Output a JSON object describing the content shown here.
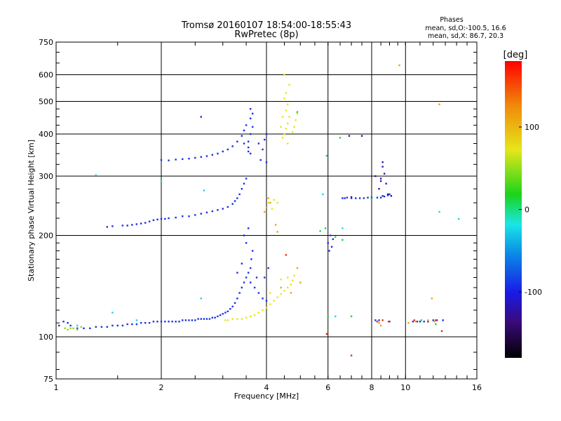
{
  "chart_data": {
    "type": "scatter",
    "title": "Tromsø 20160107 18:54:00-18:55:43",
    "subtitle": "RwPretec (8p)",
    "stats": {
      "heading": "Phases",
      "line1": "mean, sd,O:-100.5, 16.6",
      "line2": "mean, sd,X: 86.7, 20.3"
    },
    "xlabel": "Frequency [MHz]",
    "ylabel": "Stationary phase Virtual Height [km]",
    "x_scale": "log",
    "y_scale": "log",
    "xlim": [
      1,
      16
    ],
    "ylim": [
      75,
      750
    ],
    "x_ticks": [
      1,
      2,
      4,
      6,
      8,
      10,
      16
    ],
    "x_tick_labels": [
      "1",
      "2",
      "4",
      "6",
      "8",
      "10",
      "16"
    ],
    "y_ticks": [
      75,
      100,
      200,
      300,
      400,
      500,
      600,
      750
    ],
    "y_tick_labels": [
      "75",
      "100",
      "200",
      "300",
      "400",
      "500",
      "600",
      "750"
    ],
    "grid": true,
    "colorbar": {
      "label": "[deg]",
      "range": [
        -180,
        180
      ],
      "ticks": [
        100,
        0,
        -100
      ],
      "tick_labels": [
        "100",
        "0",
        "-100"
      ]
    },
    "series": [
      {
        "color": "#1a2ee6",
        "points": [
          [
            1.02,
            108
          ],
          [
            1.05,
            111
          ],
          [
            1.08,
            110
          ],
          [
            1.1,
            108
          ],
          [
            1.15,
            106
          ],
          [
            1.2,
            106
          ],
          [
            1.25,
            106
          ],
          [
            1.3,
            107
          ],
          [
            1.35,
            107
          ],
          [
            1.4,
            107
          ],
          [
            1.45,
            108
          ],
          [
            1.5,
            108
          ],
          [
            1.55,
            108
          ],
          [
            1.6,
            109
          ],
          [
            1.65,
            109
          ],
          [
            1.7,
            109
          ],
          [
            1.75,
            110
          ],
          [
            1.8,
            110
          ],
          [
            1.85,
            110
          ],
          [
            1.9,
            111
          ],
          [
            1.95,
            111
          ],
          [
            2.0,
            111
          ],
          [
            2.05,
            111
          ],
          [
            2.1,
            111
          ],
          [
            2.15,
            111
          ],
          [
            2.2,
            111
          ],
          [
            2.25,
            111
          ],
          [
            2.3,
            112
          ],
          [
            2.35,
            112
          ],
          [
            2.4,
            112
          ],
          [
            2.45,
            112
          ],
          [
            2.5,
            112
          ],
          [
            2.55,
            113
          ],
          [
            2.6,
            113
          ],
          [
            2.65,
            113
          ],
          [
            2.7,
            113
          ],
          [
            2.75,
            113
          ],
          [
            2.8,
            114
          ],
          [
            2.85,
            114
          ],
          [
            2.9,
            115
          ],
          [
            2.95,
            116
          ],
          [
            3.0,
            117
          ],
          [
            3.05,
            118
          ],
          [
            3.1,
            119
          ],
          [
            3.15,
            121
          ],
          [
            3.2,
            123
          ],
          [
            3.25,
            126
          ],
          [
            3.3,
            130
          ],
          [
            3.35,
            135
          ],
          [
            3.4,
            140
          ],
          [
            3.45,
            145
          ],
          [
            3.5,
            150
          ],
          [
            3.55,
            155
          ],
          [
            3.6,
            160
          ],
          [
            3.62,
            170
          ],
          [
            3.65,
            180
          ],
          [
            3.5,
            190
          ],
          [
            3.45,
            200
          ],
          [
            3.55,
            210
          ],
          [
            3.4,
            165
          ],
          [
            3.3,
            155
          ],
          [
            3.6,
            145
          ],
          [
            3.7,
            140
          ],
          [
            3.75,
            150
          ],
          [
            3.8,
            135
          ],
          [
            3.9,
            130
          ],
          [
            4.0,
            128
          ],
          [
            3.95,
            150
          ],
          [
            4.05,
            160
          ],
          [
            1.4,
            212
          ],
          [
            1.45,
            213
          ],
          [
            1.55,
            214
          ],
          [
            1.6,
            214
          ],
          [
            1.65,
            215
          ],
          [
            1.7,
            216
          ],
          [
            1.75,
            217
          ],
          [
            1.8,
            218
          ],
          [
            1.85,
            220
          ],
          [
            1.9,
            222
          ],
          [
            1.95,
            223
          ],
          [
            2.0,
            224
          ],
          [
            2.05,
            224
          ],
          [
            2.1,
            225
          ],
          [
            2.2,
            226
          ],
          [
            2.3,
            228
          ],
          [
            2.4,
            228
          ],
          [
            2.5,
            230
          ],
          [
            2.6,
            232
          ],
          [
            2.7,
            234
          ],
          [
            2.8,
            236
          ],
          [
            2.9,
            238
          ],
          [
            3.0,
            240
          ],
          [
            3.1,
            243
          ],
          [
            3.2,
            248
          ],
          [
            3.25,
            253
          ],
          [
            3.3,
            258
          ],
          [
            3.35,
            265
          ],
          [
            3.4,
            275
          ],
          [
            3.45,
            285
          ],
          [
            3.5,
            295
          ],
          [
            2.0,
            335
          ],
          [
            2.1,
            334
          ],
          [
            2.2,
            336
          ],
          [
            2.3,
            337
          ],
          [
            2.4,
            338
          ],
          [
            2.5,
            340
          ],
          [
            2.6,
            342
          ],
          [
            2.7,
            344
          ],
          [
            2.8,
            347
          ],
          [
            2.9,
            350
          ],
          [
            3.0,
            355
          ],
          [
            3.1,
            360
          ],
          [
            3.2,
            368
          ],
          [
            3.3,
            380
          ],
          [
            3.4,
            395
          ],
          [
            3.45,
            410
          ],
          [
            3.5,
            425
          ],
          [
            3.45,
            375
          ],
          [
            3.55,
            380
          ],
          [
            3.55,
            365
          ],
          [
            3.6,
            400
          ],
          [
            3.65,
            420
          ],
          [
            3.55,
            355
          ],
          [
            3.6,
            350
          ],
          [
            3.8,
            375
          ],
          [
            3.9,
            360
          ],
          [
            3.95,
            385
          ],
          [
            4.0,
            400
          ],
          [
            3.85,
            335
          ],
          [
            4.0,
            330
          ],
          [
            3.6,
            445
          ],
          [
            3.65,
            460
          ],
          [
            3.6,
            475
          ],
          [
            2.6,
            450
          ],
          [
            6.6,
            258
          ],
          [
            6.7,
            258
          ],
          [
            6.8,
            259
          ],
          [
            7.0,
            258
          ],
          [
            7.2,
            258
          ],
          [
            7.4,
            258
          ],
          [
            7.6,
            258
          ],
          [
            7.8,
            259
          ],
          [
            8.0,
            259
          ],
          [
            8.3,
            259
          ],
          [
            8.5,
            259
          ],
          [
            8.7,
            261
          ],
          [
            8.9,
            263
          ],
          [
            9.0,
            265
          ],
          [
            8.6,
            262
          ],
          [
            6.1,
            200
          ],
          [
            6.2,
            195
          ],
          [
            6.0,
            190
          ],
          [
            6.15,
            185
          ],
          [
            6.05,
            180
          ],
          [
            8.2,
            112
          ],
          [
            8.4,
            112
          ],
          [
            9.0,
            111
          ],
          [
            10.5,
            111
          ],
          [
            10.8,
            111
          ],
          [
            11.0,
            111
          ],
          [
            11.3,
            111
          ],
          [
            11.6,
            111
          ],
          [
            12.0,
            112
          ],
          [
            12.3,
            112
          ],
          [
            12.8,
            112
          ]
        ]
      },
      {
        "color": "#3b0fa8",
        "points": [
          [
            6.9,
            395
          ],
          [
            7.5,
            395
          ],
          [
            8.6,
            320
          ],
          [
            8.7,
            305
          ],
          [
            8.5,
            295
          ],
          [
            8.8,
            285
          ],
          [
            8.4,
            275
          ],
          [
            8.9,
            265
          ],
          [
            8.2,
            300
          ],
          [
            7.0,
            260
          ],
          [
            8.6,
            330
          ],
          [
            9.1,
            262
          ],
          [
            8.5,
            290
          ]
        ]
      },
      {
        "color": "#e6e61a",
        "points": [
          [
            3.05,
            112
          ],
          [
            3.1,
            112
          ],
          [
            3.2,
            113
          ],
          [
            3.3,
            113
          ],
          [
            3.4,
            113
          ],
          [
            3.5,
            114
          ],
          [
            3.6,
            115
          ],
          [
            3.7,
            116
          ],
          [
            3.8,
            118
          ],
          [
            3.9,
            120
          ],
          [
            4.0,
            122
          ],
          [
            4.1,
            125
          ],
          [
            4.2,
            128
          ],
          [
            4.3,
            131
          ],
          [
            4.4,
            134
          ],
          [
            4.5,
            137
          ],
          [
            4.6,
            140
          ],
          [
            4.7,
            143
          ],
          [
            4.75,
            147
          ],
          [
            4.8,
            152
          ],
          [
            4.4,
            148
          ],
          [
            4.6,
            150
          ],
          [
            4.1,
            135
          ],
          [
            4.45,
            390
          ],
          [
            4.5,
            400
          ],
          [
            4.55,
            415
          ],
          [
            4.6,
            430
          ],
          [
            4.65,
            450
          ],
          [
            4.55,
            470
          ],
          [
            4.6,
            490
          ],
          [
            4.5,
            510
          ],
          [
            4.55,
            530
          ],
          [
            4.65,
            560
          ],
          [
            4.5,
            600
          ],
          [
            4.75,
            405
          ],
          [
            4.8,
            420
          ],
          [
            4.85,
            440
          ],
          [
            4.9,
            460
          ],
          [
            4.4,
            420
          ],
          [
            4.45,
            450
          ],
          [
            4.6,
            375
          ],
          [
            4.3,
            250
          ],
          [
            4.15,
            240
          ],
          [
            4.05,
            250
          ],
          [
            4.2,
            255
          ]
        ]
      },
      {
        "color": "#8fd61a",
        "points": [
          [
            1.08,
            105
          ],
          [
            1.1,
            106
          ],
          [
            1.12,
            106
          ],
          [
            1.15,
            105
          ],
          [
            1.06,
            106
          ],
          [
            1.18,
            107
          ]
        ]
      },
      {
        "color": "#f0a010",
        "points": [
          [
            3.95,
            235
          ],
          [
            4.0,
            242
          ],
          [
            4.1,
            250
          ],
          [
            4.05,
            258
          ],
          [
            4.3,
            205
          ],
          [
            4.25,
            215
          ],
          [
            4.9,
            160
          ],
          [
            4.4,
            140
          ],
          [
            4.7,
            135
          ],
          [
            5.0,
            145
          ],
          [
            8.4,
            110
          ],
          [
            10.2,
            110
          ],
          [
            10.7,
            111
          ],
          [
            11.6,
            112
          ],
          [
            9.6,
            640
          ],
          [
            12.5,
            490
          ],
          [
            8.5,
            108
          ],
          [
            12.1,
            111
          ],
          [
            11.9,
            130
          ]
        ]
      },
      {
        "color": "#e62a10",
        "points": [
          [
            8.3,
            111
          ],
          [
            8.6,
            112
          ],
          [
            10.6,
            112
          ],
          [
            12.2,
            112
          ],
          [
            7.0,
            88
          ],
          [
            4.55,
            175
          ],
          [
            5.95,
            102
          ],
          [
            8.95,
            111
          ],
          [
            12.7,
            104
          ]
        ]
      },
      {
        "color": "#1ad4e6",
        "points": [
          [
            1.3,
            302
          ],
          [
            2.65,
            272
          ],
          [
            2.0,
            290
          ],
          [
            1.7,
            112
          ],
          [
            2.6,
            130
          ],
          [
            1.15,
            108
          ],
          [
            5.8,
            265
          ],
          [
            6.6,
            210
          ],
          [
            12.5,
            235
          ],
          [
            14.2,
            224
          ],
          [
            6.3,
            115
          ],
          [
            1.45,
            118
          ]
        ]
      },
      {
        "color": "#1ad44a",
        "points": [
          [
            6.3,
            198
          ],
          [
            6.6,
            194
          ],
          [
            5.7,
            206
          ],
          [
            5.9,
            210
          ],
          [
            6.5,
            390
          ],
          [
            4.9,
            465
          ],
          [
            6.0,
            115
          ],
          [
            7.0,
            115
          ],
          [
            11.1,
            112
          ],
          [
            12.2,
            109
          ],
          [
            8.0,
            257
          ],
          [
            5.95,
            345
          ]
        ]
      }
    ]
  }
}
